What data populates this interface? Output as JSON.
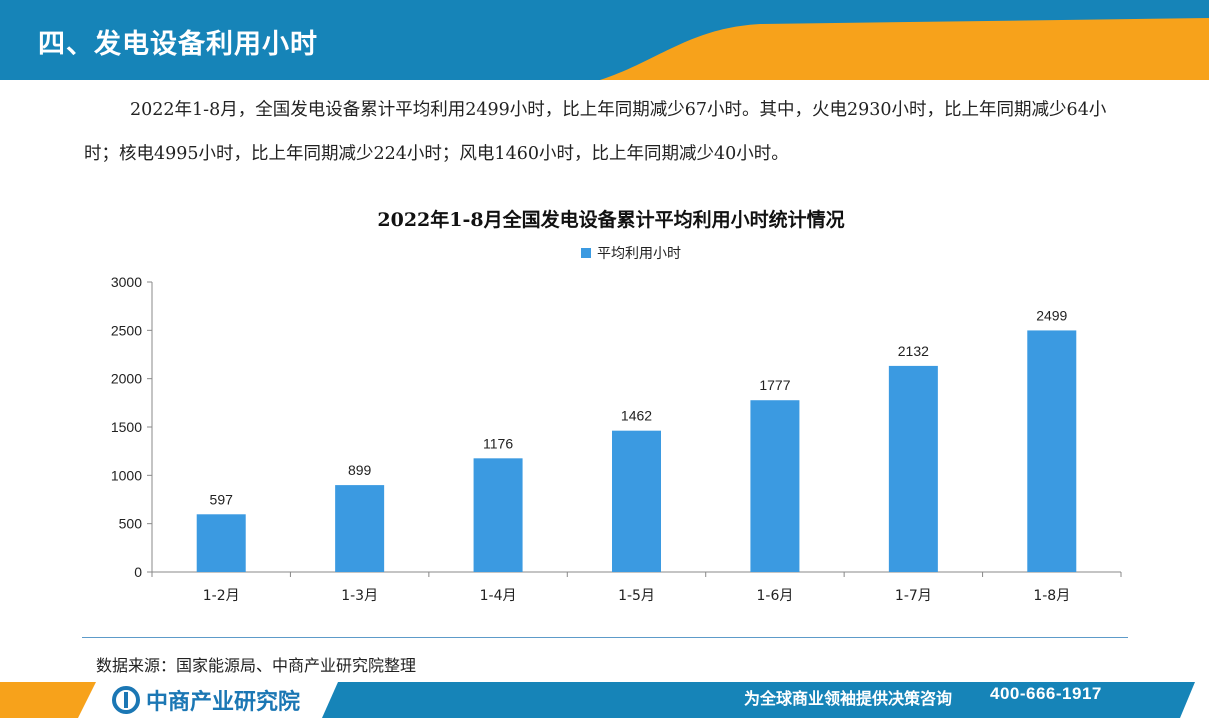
{
  "header": {
    "title": "四、发电设备利用小时"
  },
  "intro": {
    "text": "2022年1-8月，全国发电设备累计平均利用2499小时，比上年同期减少67小时。其中，火电2930小时，比上年同期减少64小时；核电4995小时，比上年同期减少224小时；风电1460小时，比上年同期减少40小时。"
  },
  "chart_data": {
    "type": "bar",
    "title": "2022年1-8月全国发电设备累计平均利用小时统计情况",
    "categories": [
      "1-2月",
      "1-3月",
      "1-4月",
      "1-5月",
      "1-6月",
      "1-7月",
      "1-8月"
    ],
    "series": [
      {
        "name": "平均利用小时",
        "values": [
          597,
          899,
          1176,
          1462,
          1777,
          2132,
          2499
        ],
        "color": "#3b9ae1"
      }
    ],
    "ylim": [
      0,
      3000
    ],
    "yticks": [
      0,
      500,
      1000,
      1500,
      2000,
      2500,
      3000
    ],
    "legend": "top-center",
    "grid": false,
    "data_labels": true
  },
  "source": {
    "text": "数据来源：国家能源局、中商产业研究院整理"
  },
  "footer": {
    "logo_text": "中商产业研究院",
    "slogan": "为全球商业领袖提供决策咨询",
    "phone": "400-666-1917"
  },
  "colors": {
    "header_blue": "#1684b8",
    "accent_orange": "#f7a21b",
    "bar_blue": "#3b9ae1"
  }
}
